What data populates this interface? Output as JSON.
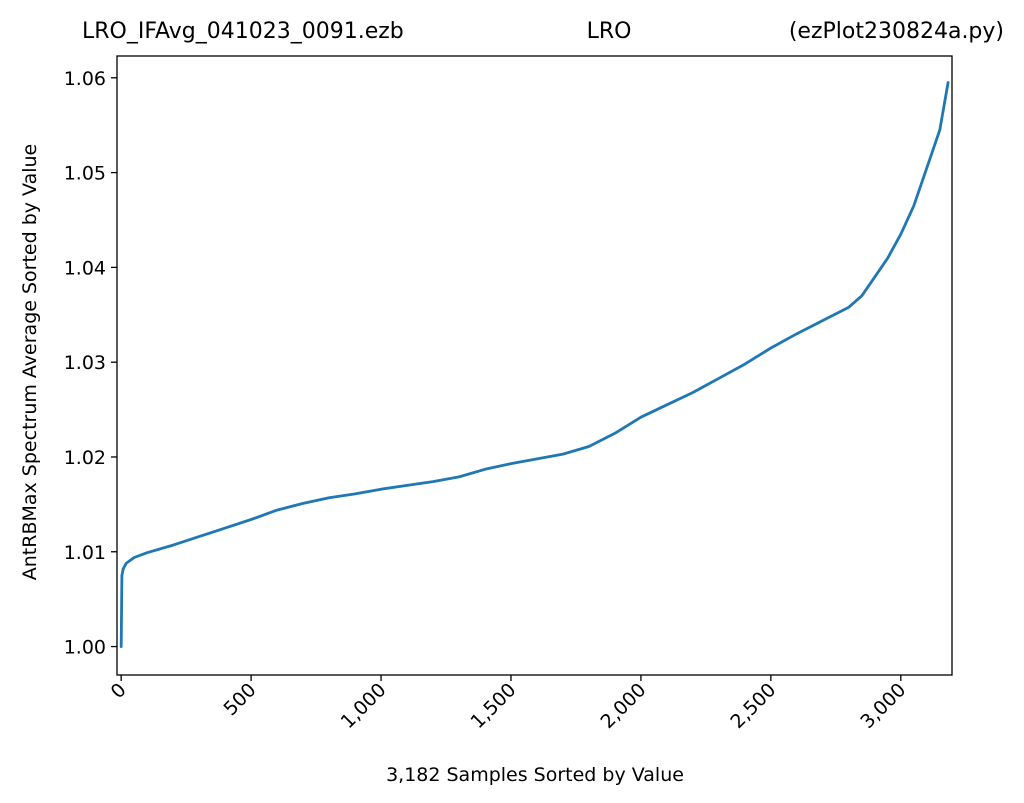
{
  "chart_data": {
    "type": "line",
    "title_left": "LRO_IFAvg_041023_0091.ezb",
    "title_center": "LRO",
    "title_right": "(ezPlot230824a.py)",
    "xlabel": "3,182 Samples Sorted by Value",
    "ylabel": "AntRBMax Spectrum Average Sorted by Value",
    "xlim": [
      -16,
      3197
    ],
    "ylim": [
      0.997,
      1.0623
    ],
    "xticks": [
      0,
      500,
      1000,
      1500,
      2000,
      2500,
      3000
    ],
    "xtick_labels": [
      "0",
      "500",
      "1,000",
      "1,500",
      "2,000",
      "2,500",
      "3,000"
    ],
    "yticks": [
      1.0,
      1.01,
      1.02,
      1.03,
      1.04,
      1.05,
      1.06
    ],
    "ytick_labels": [
      "1.00",
      "1.01",
      "1.02",
      "1.03",
      "1.04",
      "1.05",
      "1.06"
    ],
    "grid": false,
    "line_color": "#1f77b4",
    "series": [
      {
        "x": [
          0,
          3,
          8,
          20,
          50,
          100,
          200,
          300,
          400,
          500,
          600,
          700,
          800,
          900,
          1000,
          1100,
          1200,
          1300,
          1400,
          1500,
          1600,
          1700,
          1800,
          1900,
          2000,
          2100,
          2200,
          2300,
          2400,
          2500,
          2600,
          2700,
          2800,
          2850,
          2900,
          2950,
          3000,
          3050,
          3100,
          3150,
          3182
        ],
        "y": [
          1.0,
          1.0075,
          1.0082,
          1.0088,
          1.0094,
          1.0099,
          1.0107,
          1.0116,
          1.0125,
          1.0134,
          1.0144,
          1.0151,
          1.0157,
          1.0161,
          1.0166,
          1.017,
          1.0174,
          1.0179,
          1.0187,
          1.0193,
          1.0198,
          1.0203,
          1.0211,
          1.0225,
          1.0242,
          1.0255,
          1.0268,
          1.0283,
          1.0298,
          1.0315,
          1.033,
          1.0344,
          1.0358,
          1.037,
          1.039,
          1.041,
          1.0435,
          1.0465,
          1.0505,
          1.0545,
          1.0595
        ]
      }
    ]
  }
}
